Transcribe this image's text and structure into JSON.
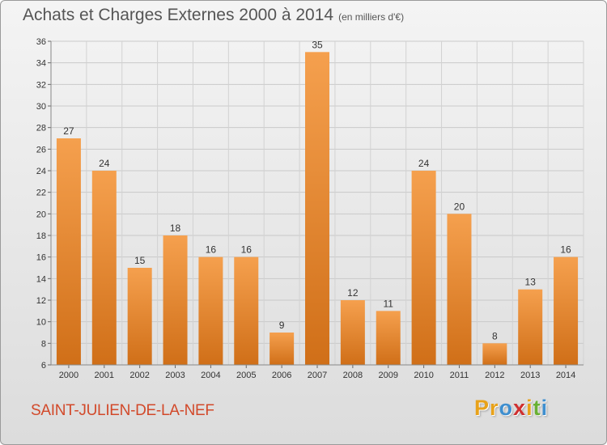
{
  "header": {
    "title": "Achats et Charges Externes 2000 à 2014",
    "subtitle": "(en milliers d'€)"
  },
  "footer": {
    "town": "SAINT-JULIEN-DE-LA-NEF",
    "logo_letters": [
      "P",
      "r",
      "o",
      "x",
      "i",
      "t",
      "i"
    ],
    "logo_colors": [
      "#e8a21a",
      "#e8a21a",
      "#3f8fcf",
      "#cf2f2f",
      "#e8a21a",
      "#69b033",
      "#3f8fcf"
    ]
  },
  "chart_data": {
    "type": "bar",
    "title": "Achats et Charges Externes 2000 à 2014",
    "subtitle": "(en milliers d'€)",
    "categories": [
      "2000",
      "2001",
      "2002",
      "2003",
      "2004",
      "2005",
      "2006",
      "2007",
      "2008",
      "2009",
      "2010",
      "2011",
      "2012",
      "2013",
      "2014"
    ],
    "values": [
      27,
      24,
      15,
      18,
      16,
      16,
      9,
      35,
      12,
      11,
      24,
      20,
      8,
      13,
      16
    ],
    "ylim": [
      6,
      36
    ],
    "yticks": [
      6,
      8,
      10,
      12,
      14,
      16,
      18,
      20,
      22,
      24,
      26,
      28,
      30,
      32,
      34,
      36
    ],
    "grid": true,
    "bar_color_top": "#f5a04e",
    "bar_color_bottom": "#d06f18"
  }
}
